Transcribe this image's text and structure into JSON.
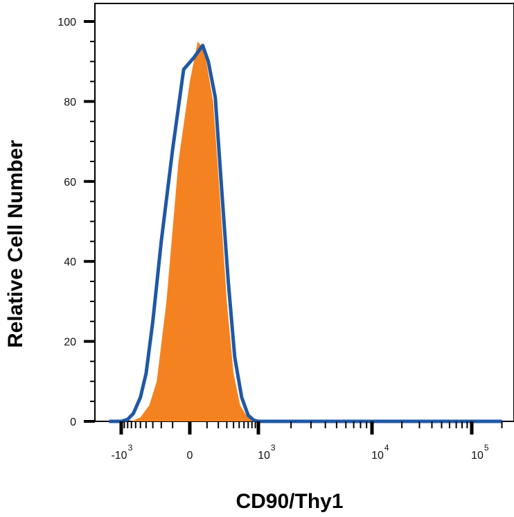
{
  "chart_data": {
    "type": "area",
    "xlabel": "CD90/Thy1",
    "ylabel": "Relative Cell Number",
    "ylim": [
      0,
      100
    ],
    "y_ticks": [
      "0",
      "20",
      "40",
      "60",
      "80",
      "100"
    ],
    "x_ticks": [
      {
        "base": "-10",
        "exp": "3"
      },
      {
        "base": "0",
        "exp": ""
      },
      {
        "base": "10",
        "exp": "3"
      },
      {
        "base": "10",
        "exp": "4"
      },
      {
        "base": "10",
        "exp": "5"
      }
    ],
    "x_scale": "biexponential",
    "colors": {
      "filled": "#f58220",
      "outline": "#1f58a5",
      "axis": "#000000"
    },
    "series": [
      {
        "style": "filled",
        "x": [
          -700,
          -500,
          -350,
          -250,
          -150,
          -60,
          0,
          40,
          80,
          150,
          220,
          300,
          400,
          520,
          650,
          800,
          950,
          1100,
          2000,
          100000
        ],
        "y": [
          0,
          1,
          4,
          10,
          30,
          65,
          85,
          95,
          93,
          80,
          55,
          30,
          12,
          4,
          1.5,
          0.5,
          0,
          0,
          0,
          0
        ]
      },
      {
        "style": "outline",
        "x": [
          -1500,
          -1000,
          -800,
          -650,
          -500,
          -400,
          -300,
          -200,
          -100,
          -30,
          20,
          70,
          110,
          170,
          230,
          320,
          420,
          550,
          700,
          850,
          1000,
          1200,
          2000,
          10000,
          100000,
          200000
        ],
        "y": [
          0,
          0,
          0.5,
          2,
          6,
          12,
          25,
          45,
          68,
          88,
          91,
          94,
          90,
          81,
          60,
          35,
          16,
          6,
          1.5,
          0.3,
          0,
          0,
          0,
          0,
          0,
          0
        ]
      }
    ]
  }
}
